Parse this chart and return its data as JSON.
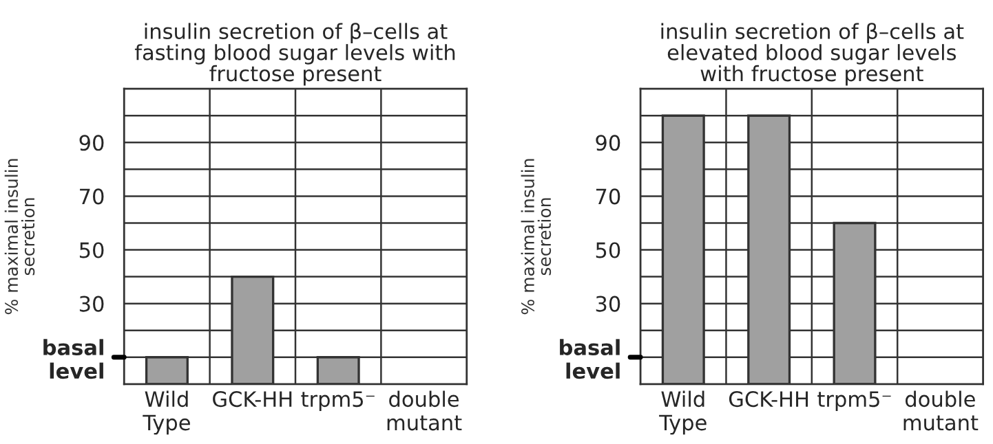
{
  "chart_data": [
    {
      "type": "bar",
      "title": "insulin secretion of β–cells at\nfasting blood sugar levels with\nfructose present",
      "ylabel": "% maximal insulin\nsecretion",
      "categories": [
        "Wild\nType",
        "GCK-HH",
        "trpm5⁻",
        "double\nmutant"
      ],
      "values": [
        10,
        40,
        10,
        null
      ],
      "color": "#a0a0a0",
      "ylim": [
        0,
        110
      ],
      "yticks": [
        {
          "value": 10,
          "label": "basal\nlevel"
        },
        {
          "value": 20,
          "label": null
        },
        30,
        {
          "value": 40,
          "label": null
        },
        50,
        {
          "value": 60,
          "label": null
        },
        70,
        {
          "value": 80,
          "label": null
        },
        90,
        {
          "value": 100,
          "label": null
        }
      ],
      "grid": true
    },
    {
      "type": "bar",
      "title": "insulin secretion of β–cells at\nelevated blood sugar levels\nwith fructose present",
      "ylabel": "% maximal insulin\nsecretion",
      "categories": [
        "Wild\nType",
        "GCK-HH",
        "trpm5⁻",
        "double\nmutant"
      ],
      "values": [
        100,
        100,
        60,
        null
      ],
      "color": "#a0a0a0",
      "ylim": [
        0,
        110
      ],
      "yticks": [
        {
          "value": 10,
          "label": "basal\nlevel"
        },
        {
          "value": 20,
          "label": null
        },
        30,
        {
          "value": 40,
          "label": null
        },
        50,
        {
          "value": 60,
          "label": null
        },
        70,
        {
          "value": 80,
          "label": null
        },
        90,
        {
          "value": 100,
          "label": null
        }
      ],
      "grid": true
    }
  ]
}
